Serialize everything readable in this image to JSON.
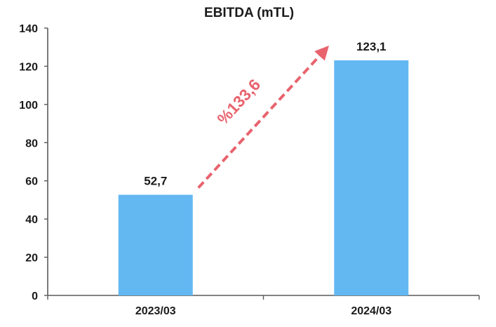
{
  "chart_data": {
    "type": "bar",
    "title": "EBITDA (mTL)",
    "categories": [
      "2023/03",
      "2024/03"
    ],
    "values": [
      52.7,
      123.1
    ],
    "data_labels": [
      "52,7",
      "123,1"
    ],
    "ylim": [
      0,
      140
    ],
    "yticks": [
      0,
      20,
      40,
      60,
      80,
      100,
      120,
      140
    ],
    "xlabel": "",
    "ylabel": "",
    "grid": false,
    "legend": "none",
    "bar_color": "#63b8f2",
    "annotation": {
      "text": "%133,6",
      "type": "dashed-arrow",
      "from_category": "2023/03",
      "to_category": "2024/03",
      "color": "#e8636e"
    }
  }
}
